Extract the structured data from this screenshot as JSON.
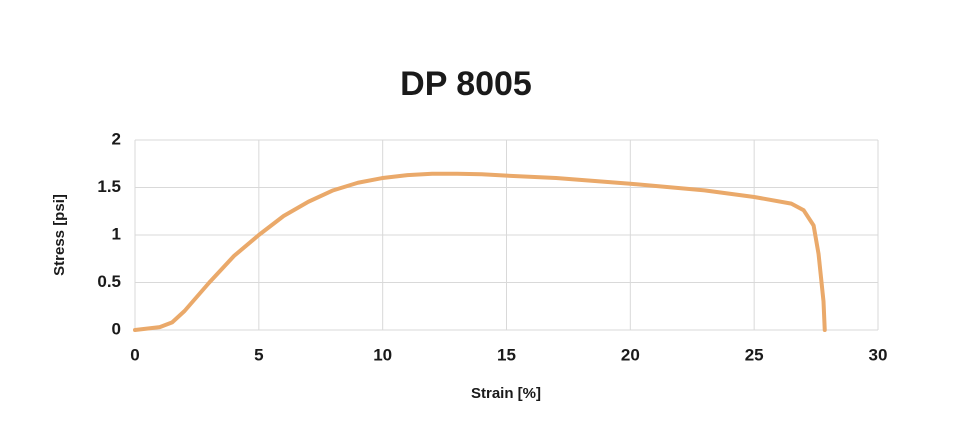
{
  "chart_data": {
    "type": "line",
    "title": "DP 8005",
    "x_label": "Strain [%]",
    "y_label": "Stress [psi]",
    "x": [
      0,
      1,
      1.5,
      2,
      3,
      4,
      5,
      6,
      7,
      8,
      9,
      10,
      11,
      12,
      13,
      14,
      15,
      17,
      20,
      23,
      25,
      26.5,
      27,
      27.4,
      27.6,
      27.8,
      27.85
    ],
    "series": [
      {
        "name": "DP 8005",
        "color": "#eaa96a",
        "values": [
          0,
          0.03,
          0.08,
          0.2,
          0.5,
          0.78,
          1.0,
          1.2,
          1.35,
          1.47,
          1.55,
          1.6,
          1.63,
          1.645,
          1.645,
          1.64,
          1.625,
          1.6,
          1.54,
          1.47,
          1.4,
          1.33,
          1.26,
          1.1,
          0.8,
          0.3,
          0
        ]
      }
    ],
    "xlim": [
      0,
      30
    ],
    "xticks": [
      0,
      5,
      10,
      15,
      20,
      25,
      30
    ],
    "ylim": [
      0,
      2
    ],
    "yticks": [
      0,
      0.5,
      1,
      1.5,
      2
    ],
    "grid": true
  }
}
